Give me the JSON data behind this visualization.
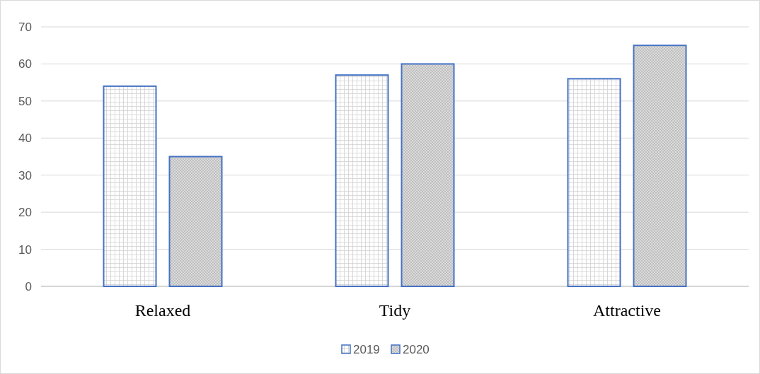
{
  "chart_data": {
    "type": "bar",
    "categories": [
      "Relaxed",
      "Tidy",
      "Attractive"
    ],
    "series": [
      {
        "name": "2019",
        "color": "#4472c4",
        "values": [
          54,
          57,
          56
        ]
      },
      {
        "name": "2020",
        "color": "#4472c4",
        "values": [
          35,
          60,
          65
        ]
      }
    ],
    "ylim": [
      0,
      70
    ],
    "yticks": [
      0,
      10,
      20,
      30,
      40,
      50,
      60,
      70
    ],
    "grid": "y",
    "legend": "bottom"
  }
}
